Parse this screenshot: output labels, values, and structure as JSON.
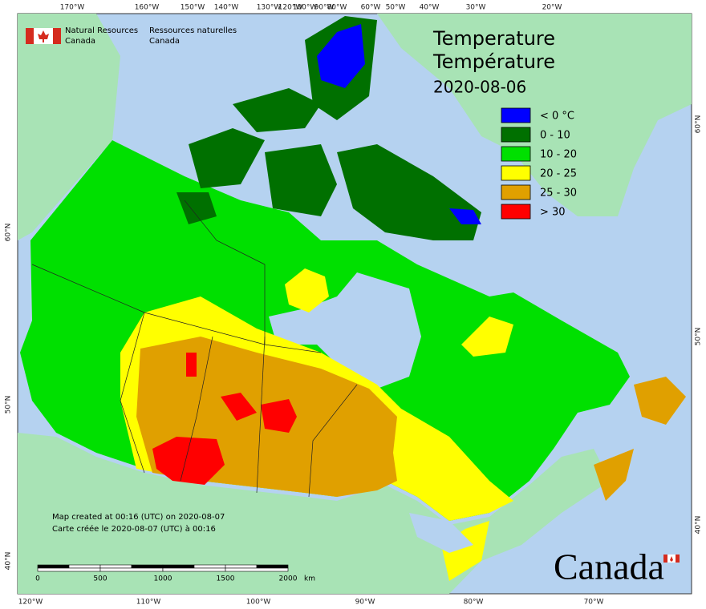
{
  "header": {
    "title": "Temperature",
    "title_fr": "Température",
    "date": "2020-08-06"
  },
  "agency": {
    "en": [
      "Natural Resources",
      "Canada"
    ],
    "fr": [
      "Ressources naturelles",
      "Canada"
    ]
  },
  "legend": [
    {
      "label": "< 0 °C",
      "color": "#0000ff"
    },
    {
      "label": "0 - 10",
      "color": "#007000"
    },
    {
      "label": "10 - 20",
      "color": "#00e000"
    },
    {
      "label": "20 - 25",
      "color": "#ffff00"
    },
    {
      "label": "25 - 30",
      "color": "#e0a000"
    },
    {
      "label": "> 30",
      "color": "#ff0000"
    }
  ],
  "graticule": {
    "top": [
      "170°W",
      "160°W",
      "150°W",
      "140°W",
      "130°W",
      "120°W",
      "100°W",
      "90°W",
      "80°W",
      "60°W",
      "50°W",
      "40°W",
      "30°W",
      "20°W"
    ],
    "bottom": [
      "120°W",
      "110°W",
      "100°W",
      "90°W",
      "80°W",
      "70°W"
    ],
    "left": [
      "60°N",
      "50°N",
      "40°N"
    ],
    "right": [
      "60°N",
      "50°N",
      "40°N"
    ]
  },
  "scale_bar": {
    "ticks": [
      "0",
      "500",
      "1000",
      "1500",
      "2000"
    ],
    "unit": "km"
  },
  "footnote": [
    "Map created at 00:16 (UTC) on 2020-08-07",
    "Carte créée le 2020-08-07 (UTC) à 00:16"
  ],
  "wordmark": "Canada"
}
